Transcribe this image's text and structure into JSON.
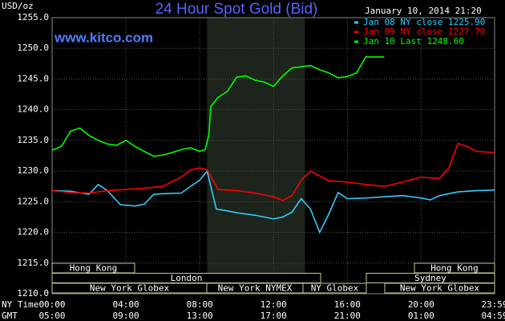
{
  "chart_data": {
    "type": "line",
    "title": "24 Hour Spot Gold (Bid)",
    "watermark": "www.kitco.com",
    "y_label": "USD/oz",
    "timestamp": "January 10, 2014 21:20",
    "x_row_labels": [
      "NY Time",
      "GMT"
    ],
    "xlim": [
      0,
      23.98
    ],
    "xticks": [
      {
        "value": 0,
        "label": "00:00"
      },
      {
        "value": 4,
        "label": "04:00"
      },
      {
        "value": 8,
        "label": "08:00"
      },
      {
        "value": 12,
        "label": "12:00"
      },
      {
        "value": 16,
        "label": "16:00"
      },
      {
        "value": 20,
        "label": "20:00"
      },
      {
        "value": 23.98,
        "label": "23:59"
      }
    ],
    "gmt_ticks": [
      "05:00",
      "09:00",
      "13:00",
      "17:00",
      "21:00",
      "01:00",
      "04:59"
    ],
    "ylim": [
      1210,
      1255
    ],
    "yticks": [
      {
        "value": 1210,
        "label": "1210.0"
      },
      {
        "value": 1215,
        "label": "1215.0"
      },
      {
        "value": 1220,
        "label": "1220.0"
      },
      {
        "value": 1225,
        "label": "1225.0"
      },
      {
        "value": 1230,
        "label": "1230.0"
      },
      {
        "value": 1235,
        "label": "1235.0"
      },
      {
        "value": 1240,
        "label": "1240.0"
      },
      {
        "value": 1245,
        "label": "1245.0"
      },
      {
        "value": 1250,
        "label": "1250.0"
      },
      {
        "value": 1255,
        "label": "1255.0"
      }
    ],
    "grid": true,
    "highlight_range": [
      8.4,
      13.7
    ],
    "sessions": [
      "Hong Kong",
      "Hong Kong",
      "London",
      "Sydney",
      "New York Globex",
      "New York NYMEX",
      "NY Globex",
      "New York Globex"
    ],
    "legend": "upper right",
    "series": [
      {
        "name": "Jan 08 NY close 1225.90",
        "color": "#33ccff",
        "x": [
          0,
          1,
          2,
          2.5,
          3,
          3.7,
          4.5,
          5,
          5.5,
          6,
          7,
          7.5,
          8,
          8.4,
          8.9,
          9.5,
          10,
          11,
          12,
          12.5,
          13,
          13.5,
          14,
          14.5,
          15,
          15.5,
          16,
          17,
          18,
          19,
          20,
          20.5,
          21,
          22,
          23,
          23.98
        ],
        "values": [
          1226.8,
          1226.7,
          1226.2,
          1227.8,
          1226.8,
          1224.5,
          1224.3,
          1224.6,
          1226.2,
          1226.3,
          1226.4,
          1227.5,
          1228.5,
          1230,
          1223.8,
          1223.5,
          1223.2,
          1222.8,
          1222.2,
          1222.5,
          1223.3,
          1225.5,
          1223.8,
          1220,
          1223,
          1226.5,
          1225.5,
          1225.6,
          1225.8,
          1226,
          1225.6,
          1225.3,
          1226,
          1226.6,
          1226.8,
          1226.9
        ]
      },
      {
        "name": "Jan 09 NY close 1227.70",
        "color": "#ff0000",
        "x": [
          0,
          1,
          2,
          3,
          4,
          5,
          6,
          7,
          7.5,
          8,
          8.4,
          9,
          10,
          11,
          12,
          12.5,
          13,
          13.5,
          14,
          14.5,
          15,
          16,
          17,
          18,
          19,
          20,
          21,
          21.5,
          22,
          22.5,
          23,
          23.98
        ],
        "values": [
          1226.8,
          1226.5,
          1226.4,
          1226.8,
          1227,
          1227.2,
          1227.5,
          1229,
          1230.2,
          1230.5,
          1230.2,
          1227,
          1226.8,
          1226.4,
          1225.8,
          1225.2,
          1226,
          1228.5,
          1230,
          1229.2,
          1228.4,
          1228.2,
          1227.8,
          1227.5,
          1228.2,
          1229,
          1228.8,
          1230.5,
          1234.5,
          1234,
          1233.2,
          1233
        ]
      },
      {
        "name": "Jan 10 Last 1248.60",
        "color": "#00ff00",
        "x": [
          0,
          0.5,
          1,
          1.5,
          2,
          2.5,
          3,
          3.5,
          4,
          4.5,
          5,
          5.5,
          6,
          6.5,
          7,
          7.5,
          8,
          8.3,
          8.5,
          8.6,
          9,
          9.5,
          10,
          10.5,
          11,
          11.5,
          12,
          12.5,
          13,
          13.5,
          14,
          14.5,
          15,
          15.5,
          16,
          16.5,
          17,
          17.5,
          18
        ],
        "values": [
          1233.4,
          1234,
          1236.5,
          1237,
          1235.8,
          1235,
          1234.4,
          1234.2,
          1235,
          1234,
          1233.2,
          1232.4,
          1232.6,
          1233,
          1233.5,
          1233.8,
          1233.2,
          1233.5,
          1236,
          1240.5,
          1242,
          1243,
          1245.3,
          1245.5,
          1244.8,
          1244.5,
          1243.8,
          1245.5,
          1246.8,
          1247,
          1247.2,
          1246.5,
          1246,
          1245.2,
          1245.4,
          1246,
          1248.6,
          1248.6,
          1248.6
        ]
      }
    ]
  }
}
